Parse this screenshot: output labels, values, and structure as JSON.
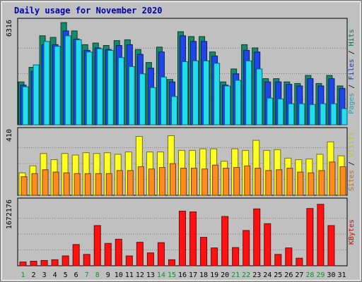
{
  "chart_data": [
    {
      "type": "bar",
      "title": "Daily usage for November 2020",
      "categories": [
        "1",
        "2",
        "3",
        "4",
        "5",
        "6",
        "7",
        "8",
        "9",
        "10",
        "11",
        "12",
        "13",
        "14",
        "15",
        "16",
        "17",
        "18",
        "19",
        "20",
        "21",
        "22",
        "23",
        "24",
        "25",
        "26",
        "27",
        "28",
        "29",
        "30",
        "31"
      ],
      "weekend_days": [
        "1",
        "7",
        "8",
        "14",
        "15",
        "21",
        "22",
        "28",
        "29"
      ],
      "max_label": "6316",
      "ylim": [
        0,
        6316
      ],
      "series": [
        {
          "name": "Hits",
          "color": "#178a6a",
          "values": [
            2650,
            3550,
            5500,
            5400,
            6316,
            5800,
            4950,
            5050,
            4900,
            5200,
            5250,
            4650,
            3850,
            4800,
            2800,
            5750,
            5450,
            5450,
            4500,
            2650,
            3450,
            4950,
            4750,
            2850,
            2850,
            2650,
            2550,
            3050,
            2550,
            3050,
            2400
          ]
        },
        {
          "name": "Files",
          "color": "#1d45e8",
          "values": [
            2450,
            3300,
            4950,
            4950,
            5800,
            5300,
            4600,
            4750,
            4650,
            4900,
            4950,
            4350,
            3500,
            4500,
            2650,
            5500,
            5150,
            5150,
            4250,
            2450,
            3150,
            4600,
            4500,
            2650,
            2650,
            2500,
            2400,
            2850,
            2400,
            2850,
            2250
          ]
        },
        {
          "name": "Pages",
          "color": "#22ddee",
          "values": [
            2350,
            3700,
            5150,
            4850,
            5500,
            5250,
            4500,
            4700,
            4600,
            4150,
            3600,
            3150,
            2300,
            2950,
            1750,
            3900,
            3950,
            3950,
            3800,
            2400,
            2750,
            3950,
            3450,
            1650,
            1600,
            1300,
            1300,
            1250,
            1300,
            1300,
            1000
          ]
        }
      ]
    },
    {
      "type": "bar",
      "max_label": "410",
      "ylim": [
        0,
        410
      ],
      "series": [
        {
          "name": "Visits",
          "color": "#ffff22",
          "values": [
            145,
            190,
            270,
            230,
            270,
            260,
            275,
            270,
            275,
            265,
            280,
            380,
            280,
            280,
            385,
            290,
            290,
            300,
            300,
            220,
            300,
            290,
            355,
            290,
            295,
            240,
            230,
            235,
            265,
            345,
            255
          ]
        },
        {
          "name": "Sites",
          "color": "#ff8c1c",
          "values": [
            120,
            140,
            165,
            150,
            145,
            140,
            140,
            140,
            140,
            160,
            160,
            185,
            170,
            180,
            205,
            175,
            175,
            170,
            195,
            175,
            180,
            190,
            175,
            160,
            165,
            175,
            150,
            145,
            160,
            215,
            185
          ]
        }
      ]
    },
    {
      "type": "bar",
      "max_label": "1672176",
      "ylim": [
        0,
        1672176
      ],
      "series": [
        {
          "name": "KBytes",
          "color": "#ff1111",
          "values": [
            100000,
            120000,
            140000,
            160000,
            260000,
            560000,
            300000,
            1060000,
            590000,
            700000,
            260000,
            620000,
            340000,
            610000,
            160000,
            1440000,
            1420000,
            750000,
            470000,
            1300000,
            480000,
            930000,
            1500000,
            1110000,
            300000,
            470000,
            200000,
            1510000,
            1620000,
            1060000,
            0
          ]
        }
      ]
    }
  ]
}
